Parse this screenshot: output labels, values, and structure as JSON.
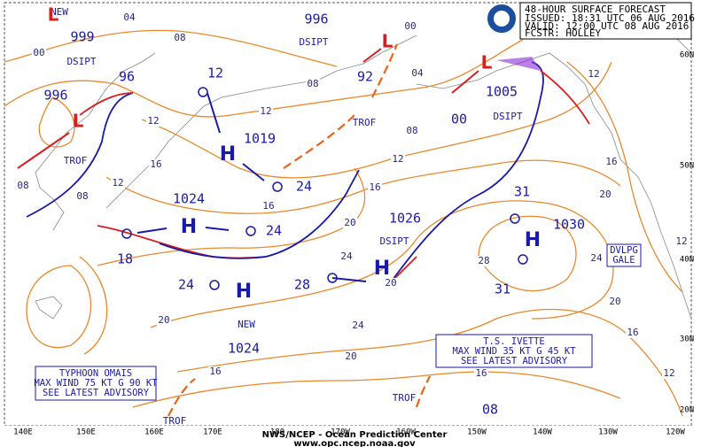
{
  "header": {
    "title": "48-HOUR SURFACE FORECAST",
    "issued": "ISSUED: 18:31 UTC 06 AUG 2016",
    "valid": "VALID: 12:00 UTC 08 AUG 2016",
    "forecaster": "FCSTR: HOLLEY"
  },
  "footer": {
    "agency": "NWS/NCEP - Ocean Prediction Center",
    "url": "www.opc.ncep.noaa.gov"
  },
  "longitudes": [
    "140E",
    "150E",
    "160E",
    "170E",
    "180",
    "170W",
    "160W",
    "150W",
    "140W",
    "130W",
    "120W"
  ],
  "latitudes": [
    "60N",
    "50N",
    "40N",
    "30N",
    "20N"
  ],
  "advisories": [
    {
      "lines": [
        "TYPHOON OMAIS",
        "MAX WIND 75 KT G 90 KT",
        "SEE LATEST ADVISORY"
      ]
    },
    {
      "lines": [
        "T.S. IVETTE",
        "MAX WIND 35 KT G 45 KT",
        "SEE LATEST ADVISORY"
      ]
    },
    {
      "lines": [
        "DVLPG",
        "GALE"
      ]
    }
  ],
  "map_labels": [
    "999",
    "DSIPT",
    "996",
    "96",
    "12",
    "1019",
    "1024",
    "24",
    "24",
    "18",
    "24",
    "NEW",
    "1024",
    "28",
    "996",
    "DSIPT",
    "92",
    "TROF",
    "1005",
    "DSIPT",
    "00",
    "1026",
    "DSIPT",
    "31",
    "1030",
    "31",
    "08",
    "NEW",
    "TROF",
    "TROF",
    "TROF",
    "H",
    "H",
    "H",
    "H",
    "H",
    "L",
    "L",
    "L",
    "L"
  ],
  "isobar_labels": [
    "04",
    "00",
    "08",
    "08",
    "04",
    "00",
    "12",
    "12",
    "16",
    "12",
    "08",
    "08",
    "16",
    "08",
    "12",
    "16",
    "20",
    "24",
    "20",
    "24",
    "20",
    "16",
    "20",
    "12",
    "16",
    "20",
    "24",
    "28",
    "20",
    "16",
    "12",
    "12",
    "16"
  ]
}
